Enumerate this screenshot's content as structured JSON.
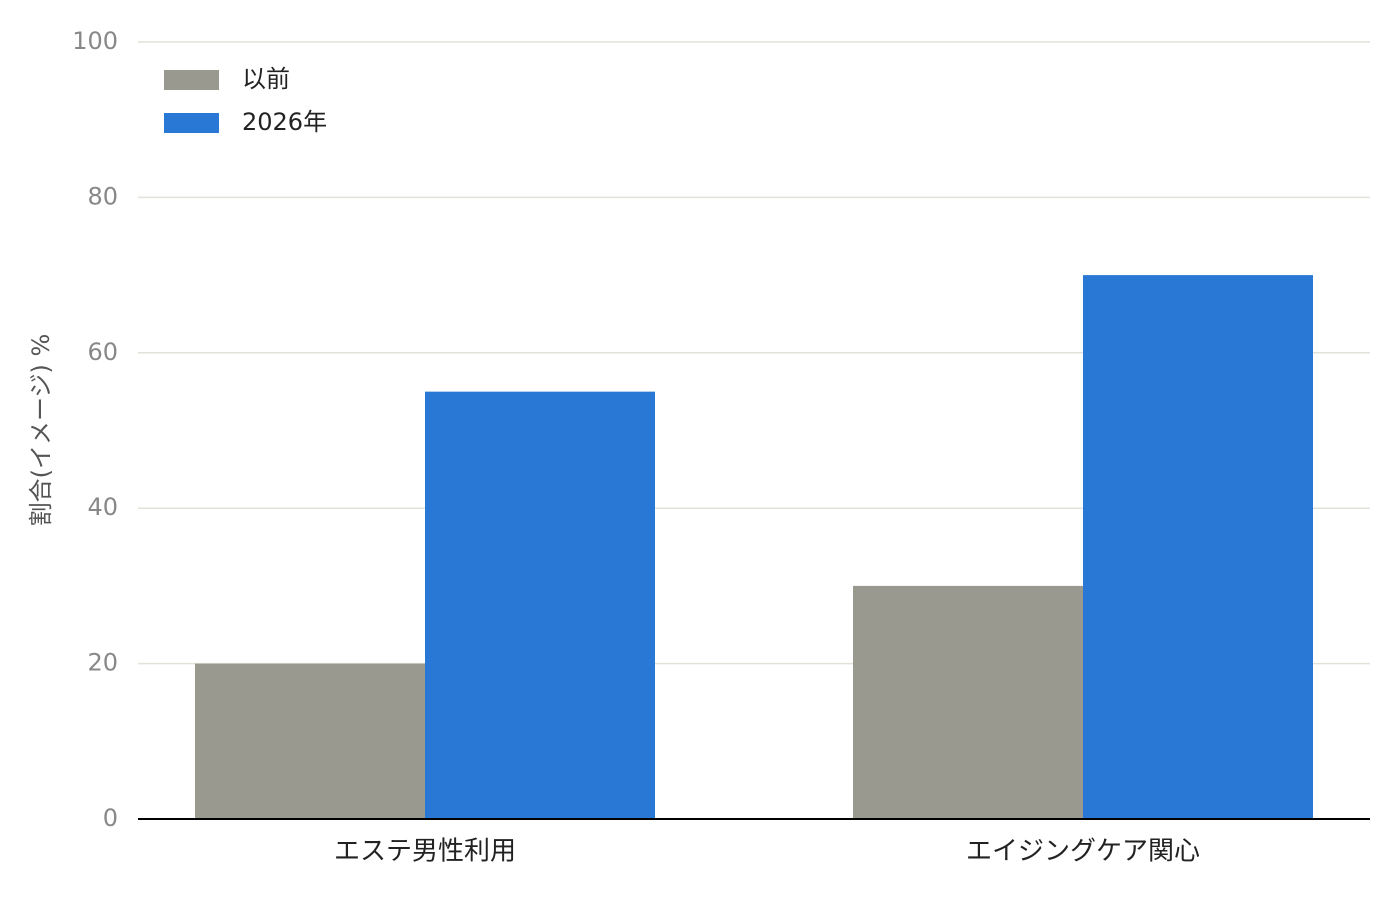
{
  "chart_data": {
    "type": "bar",
    "ylabel": "割合(イメージ) %",
    "categories": [
      "エステ男性利用",
      "エイジングケア関心"
    ],
    "series": [
      {
        "name": "以前",
        "color": "#9a9990",
        "values": [
          20,
          30
        ]
      },
      {
        "name": "2026年",
        "color": "#2a78d6",
        "values": [
          55,
          70
        ]
      }
    ],
    "ylim": [
      0,
      100
    ],
    "yticks": [
      0,
      20,
      40,
      60,
      80,
      100
    ],
    "grid": true,
    "legend": "upper-left"
  }
}
